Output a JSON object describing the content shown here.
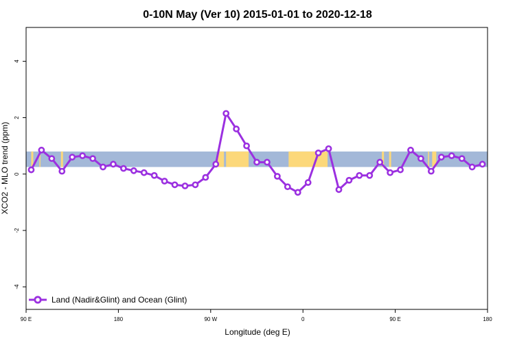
{
  "chart_data": {
    "type": "line",
    "title": "0-10N May (Ver 10)   2015-01-01 to 2020-12-18",
    "xlabel": "Longitude (deg E)",
    "ylabel": "XCO2 - MLO trend (ppm)",
    "xlim": [
      90,
      540
    ],
    "ylim": [
      -4.8,
      5.2
    ],
    "x_ticks": [
      {
        "value": 90,
        "label": "90 E"
      },
      {
        "value": 180,
        "label": "180"
      },
      {
        "value": 270,
        "label": "90 W"
      },
      {
        "value": 360,
        "label": "0"
      },
      {
        "value": 450,
        "label": "90 E"
      },
      {
        "value": 540,
        "label": "180"
      }
    ],
    "y_ticks": [
      {
        "value": -4,
        "label": "-4"
      },
      {
        "value": -2,
        "label": "-2"
      },
      {
        "value": 0,
        "label": "0"
      },
      {
        "value": 2,
        "label": "2"
      },
      {
        "value": 4,
        "label": "4"
      }
    ],
    "grid": false,
    "legend_position": "bottom-left",
    "colors": {
      "series": "#9b30e0",
      "ocean": "#a3b8d8",
      "land": "#fcd87a"
    },
    "background_map": {
      "lat_band_y_range": [
        0.25,
        0.8
      ],
      "land_x_ranges": [
        [
          95,
          97
        ],
        [
          103,
          104
        ],
        [
          124,
          126
        ],
        [
          277,
          283
        ],
        [
          285,
          307
        ],
        [
          346,
          384
        ],
        [
          437,
          439
        ],
        [
          444,
          446
        ],
        [
          482,
          483
        ],
        [
          486,
          490
        ]
      ]
    },
    "series": [
      {
        "name": "Land (Nadir&Glint) and Ocean (Glint)",
        "x": [
          95,
          105,
          115,
          125,
          135,
          145,
          155,
          165,
          175,
          185,
          195,
          205,
          215,
          225,
          235,
          245,
          255,
          265,
          275,
          285,
          295,
          305,
          315,
          325,
          335,
          345,
          355,
          365,
          375,
          385,
          395,
          405,
          415,
          425,
          435,
          445,
          455,
          465,
          475,
          485,
          495,
          505,
          515,
          525,
          535
        ],
        "values": [
          0.15,
          0.85,
          0.55,
          0.1,
          0.6,
          0.65,
          0.55,
          0.25,
          0.35,
          0.2,
          0.12,
          0.05,
          -0.05,
          -0.25,
          -0.38,
          -0.42,
          -0.38,
          -0.12,
          0.35,
          2.15,
          1.6,
          1.0,
          0.42,
          0.42,
          -0.08,
          -0.45,
          -0.65,
          -0.3,
          0.75,
          0.9,
          -0.55,
          -0.22,
          -0.05,
          -0.05,
          0.42,
          0.05,
          0.15,
          0.85,
          0.55,
          0.1,
          0.6,
          0.65,
          0.55,
          0.25,
          0.35
        ]
      }
    ]
  }
}
